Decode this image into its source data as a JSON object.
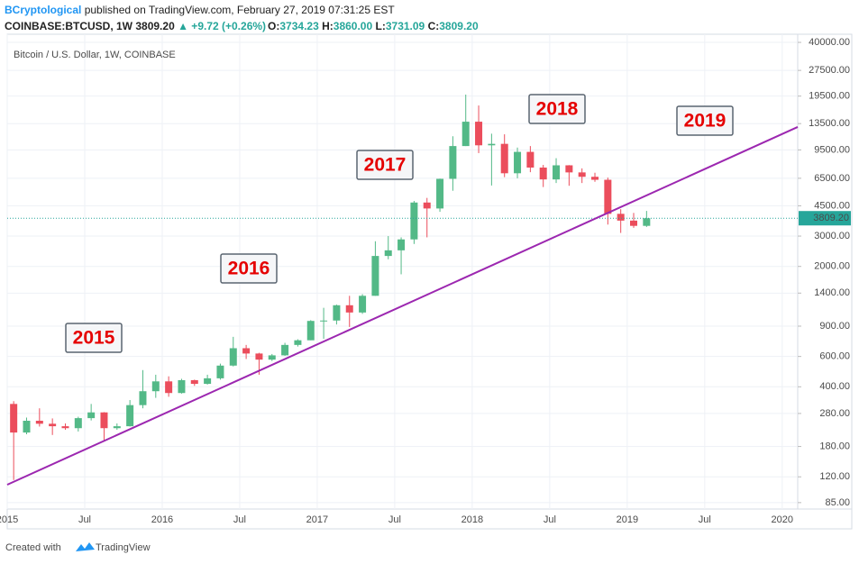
{
  "header": {
    "author": "BCryptological",
    "published": "published on TradingView.com, February 27, 2019 07:31:25 EST",
    "symbol": "COINBASE:BTCUSD, 1W",
    "price": "3809.20",
    "change": "▲ +9.72 (+0.26%)",
    "ohlc": [
      {
        "k": "O:",
        "v": "3734.23"
      },
      {
        "k": "H:",
        "v": "3860.00"
      },
      {
        "k": "L:",
        "v": "3731.09"
      },
      {
        "k": "C:",
        "v": "3809.20"
      }
    ]
  },
  "chart_data": {
    "type": "candlestick",
    "title": "Bitcoin / U.S. Dollar, 1W, COINBASE",
    "log_scale": true,
    "grid": true,
    "up_color": "#53b987",
    "down_color": "#eb4d5c",
    "x": [
      "2015-01",
      "2015-02",
      "2015-03",
      "2015-04",
      "2015-05",
      "2015-06",
      "2015-07",
      "2015-08",
      "2015-09",
      "2015-10",
      "2015-11",
      "2015-12",
      "2016-01",
      "2016-02",
      "2016-03",
      "2016-04",
      "2016-05",
      "2016-06",
      "2016-07",
      "2016-08",
      "2016-09",
      "2016-10",
      "2016-11",
      "2016-12",
      "2017-01",
      "2017-02",
      "2017-03",
      "2017-04",
      "2017-05",
      "2017-06",
      "2017-07",
      "2017-08",
      "2017-09",
      "2017-10",
      "2017-11",
      "2017-12",
      "2018-01",
      "2018-02",
      "2018-03",
      "2018-04",
      "2018-05",
      "2018-06",
      "2018-07",
      "2018-08",
      "2018-09",
      "2018-10",
      "2018-11",
      "2018-12",
      "2019-01",
      "2019-02"
    ],
    "open": [
      318,
      217,
      254,
      244,
      236,
      230,
      263,
      284,
      230,
      236,
      313,
      377,
      430,
      368,
      437,
      416,
      448,
      531,
      670,
      624,
      575,
      609,
      700,
      745,
      965,
      970,
      1190,
      1080,
      1350,
      2300,
      2480,
      2870,
      4700,
      4340,
      6450,
      10000,
      13850,
      10100,
      10300,
      6950,
      9250,
      7500,
      6400,
      7730,
      7030,
      6630,
      6370,
      4040,
      3690,
      3440
    ],
    "high": [
      330,
      265,
      300,
      262,
      245,
      268,
      318,
      285,
      245,
      335,
      500,
      470,
      460,
      445,
      440,
      470,
      545,
      780,
      700,
      630,
      620,
      720,
      755,
      975,
      1150,
      1200,
      1350,
      1380,
      2800,
      3000,
      2950,
      4800,
      5000,
      6470,
      11400,
      19900,
      17200,
      11800,
      11700,
      9800,
      10000,
      7770,
      8500,
      7750,
      7420,
      7000,
      6560,
      4300,
      4090,
      4200
    ],
    "low": [
      115,
      212,
      235,
      210,
      225,
      220,
      255,
      195,
      225,
      235,
      300,
      345,
      350,
      365,
      405,
      412,
      440,
      525,
      580,
      470,
      565,
      605,
      685,
      745,
      760,
      920,
      890,
      1060,
      1350,
      2200,
      1800,
      2700,
      2950,
      4150,
      5500,
      10000,
      9100,
      5900,
      6600,
      6500,
      7050,
      5780,
      6100,
      5880,
      6100,
      6200,
      3500,
      3130,
      3350,
      3390
    ],
    "close": [
      217,
      254,
      244,
      236,
      230,
      263,
      284,
      230,
      236,
      313,
      377,
      430,
      368,
      437,
      416,
      448,
      531,
      670,
      624,
      575,
      609,
      700,
      745,
      965,
      970,
      1190,
      1080,
      1350,
      2300,
      2480,
      2870,
      4700,
      4340,
      6450,
      10000,
      13850,
      10100,
      10300,
      6950,
      9250,
      7500,
      6400,
      7730,
      7030,
      6630,
      6370,
      4040,
      3690,
      3440,
      3809.2
    ],
    "last_label": "3809.20",
    "trend_line": {
      "x": [
        2015,
        2020.1
      ],
      "values": [
        108,
        12900
      ],
      "color": "#9c27b0"
    },
    "annotations": [
      "2015",
      "2016",
      "2017",
      "2018",
      "2019"
    ],
    "xlim": [
      2015,
      2020.1
    ],
    "xticks": [
      {
        "value": 2015,
        "label": "2015"
      },
      {
        "value": 2015.5,
        "label": "Jul"
      },
      {
        "value": 2016,
        "label": "2016"
      },
      {
        "value": 2016.5,
        "label": "Jul"
      },
      {
        "value": 2017,
        "label": "2017"
      },
      {
        "value": 2017.5,
        "label": "Jul"
      },
      {
        "value": 2018,
        "label": "2018"
      },
      {
        "value": 2018.5,
        "label": "Jul"
      },
      {
        "value": 2019,
        "label": "2019"
      },
      {
        "value": 2019.5,
        "label": "Jul"
      },
      {
        "value": 2020,
        "label": "2020"
      }
    ],
    "ylim": [
      78,
      44600
    ],
    "yticks": [
      {
        "value": 40000,
        "label": "40000.00"
      },
      {
        "value": 27500,
        "label": "27500.00"
      },
      {
        "value": 19500,
        "label": "19500.00"
      },
      {
        "value": 13500,
        "label": "13500.00"
      },
      {
        "value": 9500,
        "label": "9500.00"
      },
      {
        "value": 6500,
        "label": "6500.00"
      },
      {
        "value": 4500,
        "label": "4500.00"
      },
      {
        "value": 3000,
        "label": "3000.00"
      },
      {
        "value": 2000,
        "label": "2000.00"
      },
      {
        "value": 1400,
        "label": "1400.00"
      },
      {
        "value": 900,
        "label": "900.00"
      },
      {
        "value": 600,
        "label": "600.00"
      },
      {
        "value": 400,
        "label": "400.00"
      },
      {
        "value": 280,
        "label": "280.00"
      },
      {
        "value": 180,
        "label": "180.00"
      },
      {
        "value": 120,
        "label": "120.00"
      },
      {
        "value": 85,
        "label": "85.00"
      }
    ]
  },
  "footer": {
    "created": "Created with",
    "brand": "TradingView"
  }
}
